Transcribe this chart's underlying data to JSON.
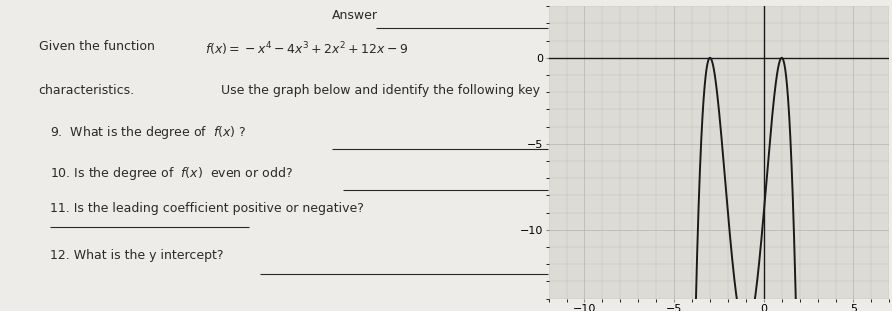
{
  "graph_xlim": [
    -12,
    7
  ],
  "graph_ylim": [
    -14,
    3
  ],
  "graph_xticks": [
    -10,
    -5,
    0,
    5
  ],
  "graph_yticks": [
    -10,
    -5,
    0
  ],
  "bg_color": "#d8d8d0",
  "paper_color": "#eeece8",
  "graph_bg": "#dddbd5",
  "line_color": "#1a1a1a",
  "text_color": "#2a2a2a",
  "green_color": "#5a7a48",
  "grid_color": "#aaaaaa",
  "answer_label": "Answer",
  "intro1": "Given the function",
  "func_str": "$f(x)=-x^4-4x^3+2x^2+12x-9$",
  "intro2": "characteristics.",
  "use_text": "Use the graph below and identify the following key",
  "q1": "9.  What is the degree of  $f(x)$ ?",
  "q2": "10. Is the degree of  $f(x)$  even or odd?",
  "q3": "11. Is the leading coefficient positive or negative?",
  "q4": "12. What is the y intercept?"
}
